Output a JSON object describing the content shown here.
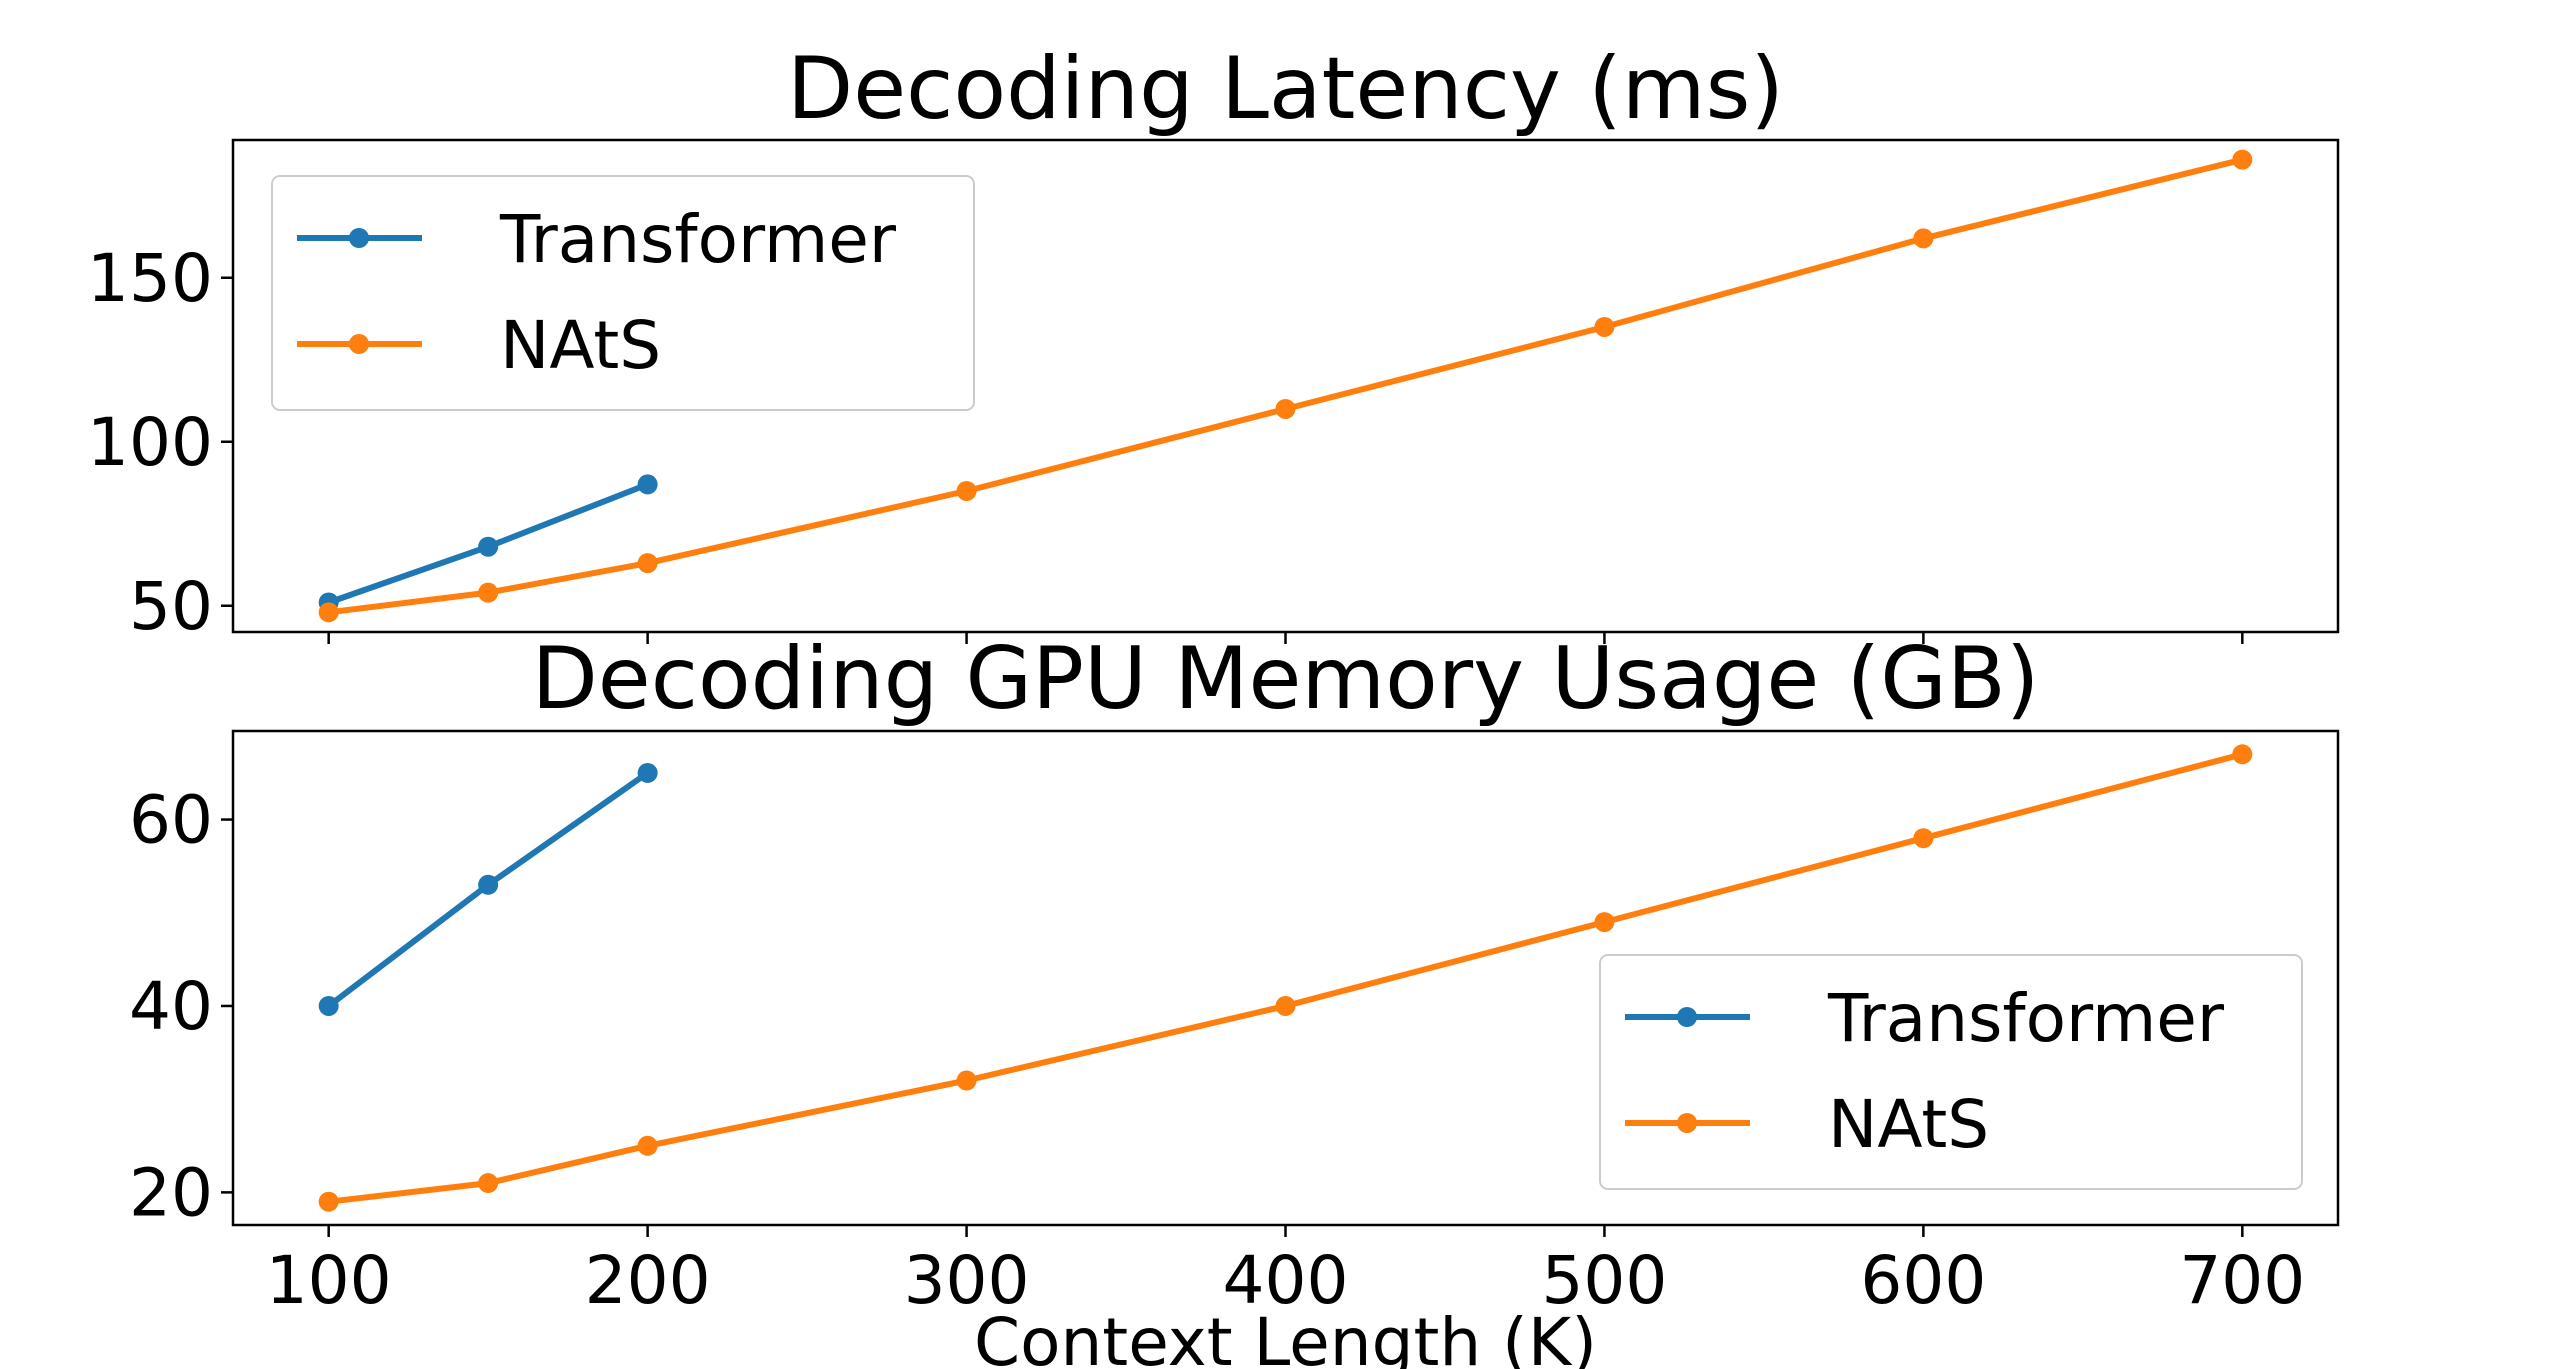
{
  "chart_data": [
    {
      "type": "line",
      "title": "Decoding Latency (ms)",
      "xlabel": "",
      "ylabel": "",
      "xlim": [
        70,
        730
      ],
      "ylim": [
        42,
        192
      ],
      "xticks": [
        100,
        200,
        300,
        400,
        500,
        600,
        700
      ],
      "xtick_labels_visible": false,
      "yticks": [
        50,
        100,
        150
      ],
      "legend_position": "upper left",
      "grid": false,
      "series": [
        {
          "name": "Transformer",
          "color": "#1f77b4",
          "x": [
            100,
            150,
            200
          ],
          "y": [
            51,
            68,
            87
          ]
        },
        {
          "name": "NAtS",
          "color": "#ff7f0e",
          "x": [
            100,
            150,
            200,
            300,
            400,
            500,
            600,
            700
          ],
          "y": [
            48,
            54,
            63,
            85,
            110,
            135,
            162,
            186
          ]
        }
      ]
    },
    {
      "type": "line",
      "title": "Decoding GPU Memory Usage (GB)",
      "xlabel": "Context Length (K)",
      "ylabel": "",
      "xlim": [
        70,
        730
      ],
      "ylim": [
        16.5,
        69.5
      ],
      "xticks": [
        100,
        200,
        300,
        400,
        500,
        600,
        700
      ],
      "xtick_labels_visible": true,
      "yticks": [
        20,
        40,
        60
      ],
      "legend_position": "lower right",
      "grid": false,
      "series": [
        {
          "name": "Transformer",
          "color": "#1f77b4",
          "x": [
            100,
            150,
            200
          ],
          "y": [
            40,
            53,
            65
          ]
        },
        {
          "name": "NAtS",
          "color": "#ff7f0e",
          "x": [
            100,
            150,
            200,
            300,
            400,
            500,
            600,
            700
          ],
          "y": [
            19,
            21,
            25,
            32,
            40,
            49,
            58,
            67
          ]
        }
      ]
    }
  ]
}
